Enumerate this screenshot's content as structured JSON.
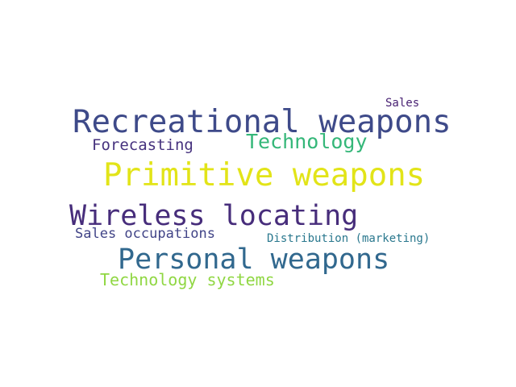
{
  "words": [
    {
      "key": "recreational",
      "text": "Recreational weapons",
      "color": "#3e4a89"
    },
    {
      "key": "primitive",
      "text": "Primitive weapons",
      "color": "#e2e418"
    },
    {
      "key": "wireless",
      "text": "Wireless locating",
      "color": "#472d7b"
    },
    {
      "key": "personal",
      "text": "Personal weapons",
      "color": "#31688e"
    },
    {
      "key": "technology",
      "text": "Technology",
      "color": "#35b779"
    },
    {
      "key": "forecasting",
      "text": "Forecasting",
      "color": "#46327e"
    },
    {
      "key": "sales_occupations",
      "text": "Sales occupations",
      "color": "#414487"
    },
    {
      "key": "technology_systems",
      "text": "Technology systems",
      "color": "#90d743"
    },
    {
      "key": "distribution",
      "text": "Distribution (marketing)",
      "color": "#2a788e"
    },
    {
      "key": "sales",
      "text": "Sales",
      "color": "#482173"
    }
  ]
}
